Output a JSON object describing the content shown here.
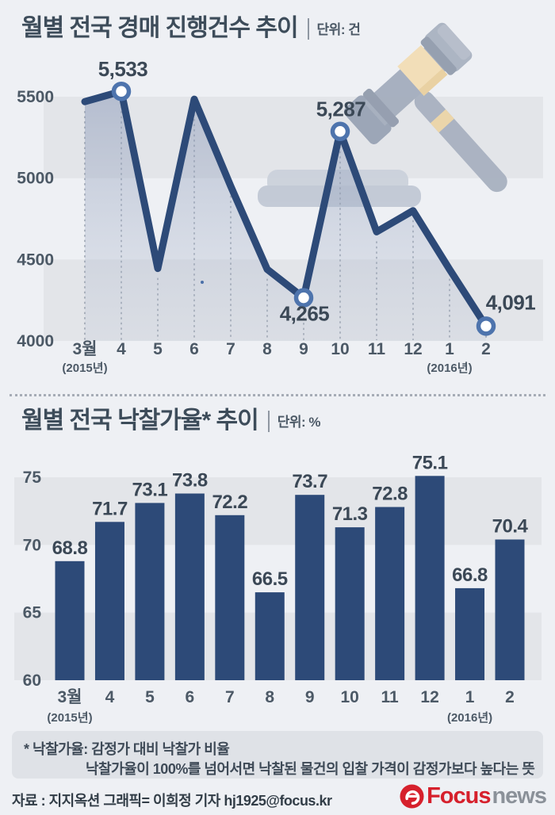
{
  "section1": {
    "title": "월별 전국 경매 진행건수 추이",
    "unit": "단위: 건"
  },
  "section2": {
    "title": "월별 전국 낙찰가율* 추이",
    "unit": "단위: %"
  },
  "chart_data": [
    {
      "type": "line",
      "title": "월별 전국 경매 진행건수 추이",
      "unit": "건",
      "categories": [
        "3월",
        "4",
        "5",
        "6",
        "7",
        "8",
        "9",
        "10",
        "11",
        "12",
        "1",
        "2"
      ],
      "year_notes": [
        {
          "index": 0,
          "label": "(2015년)"
        },
        {
          "index": 10,
          "label": "(2016년)"
        }
      ],
      "values": [
        5470,
        5533,
        4445,
        5485,
        4950,
        4440,
        4265,
        5287,
        4670,
        4800,
        4440,
        4091
      ],
      "point_labels": [
        {
          "index": 1,
          "text": "5,533"
        },
        {
          "index": 6,
          "text": "4,265"
        },
        {
          "index": 7,
          "text": "5,287"
        },
        {
          "index": 11,
          "text": "4,091"
        }
      ],
      "marker_indices": [
        1,
        6,
        7,
        11
      ],
      "yticks": [
        "5500",
        "5000",
        "4500",
        "4000"
      ],
      "ytick_values": [
        5500,
        5000,
        4500,
        4000
      ],
      "ylim": [
        4000,
        5600
      ],
      "legend": "none",
      "area_fill": true
    },
    {
      "type": "bar",
      "title": "월별 전국 낙찰가율* 추이",
      "unit": "%",
      "categories": [
        "3월",
        "4",
        "5",
        "6",
        "7",
        "8",
        "9",
        "10",
        "11",
        "12",
        "1",
        "2"
      ],
      "year_notes": [
        {
          "index": 0,
          "label": "(2015년)"
        },
        {
          "index": 10,
          "label": "(2016년)"
        }
      ],
      "values": [
        68.8,
        71.7,
        73.1,
        73.8,
        72.2,
        66.5,
        73.7,
        71.3,
        72.8,
        75.1,
        66.8,
        70.4
      ],
      "value_labels": [
        "68.8",
        "71.7",
        "73.1",
        "73.8",
        "72.2",
        "66.5",
        "73.7",
        "71.3",
        "72.8",
        "75.1",
        "66.8",
        "70.4"
      ],
      "yticks": [
        "75",
        "70",
        "65",
        "60"
      ],
      "ytick_values": [
        75,
        70,
        65,
        60
      ],
      "ylim": [
        60,
        76
      ],
      "legend": "none"
    }
  ],
  "footnote": {
    "line1": "* 낙찰가율: 감정가 대비 낙찰가 비율",
    "line2": "낙찰가율이 100%를 넘어서면 낙찰된 물건의 입찰 가격이 감정가보다 높다는 뜻"
  },
  "footer": {
    "source": "자료 : 지지옥션   그래픽= 이희정 기자 hj1925@focus.kr",
    "logo": {
      "focus": "Focus",
      "news": "news"
    }
  },
  "colors": {
    "background": "#eef0f4",
    "band": "#e3e5e9",
    "navy": "#2d4a78",
    "marker_ring": "#4e74ad",
    "label_text": "#3b4856",
    "axis_text": "#4c5966",
    "guide_dash": "#8e97a4",
    "logo_red": "#d6202c",
    "logo_gray": "#8b9199"
  }
}
